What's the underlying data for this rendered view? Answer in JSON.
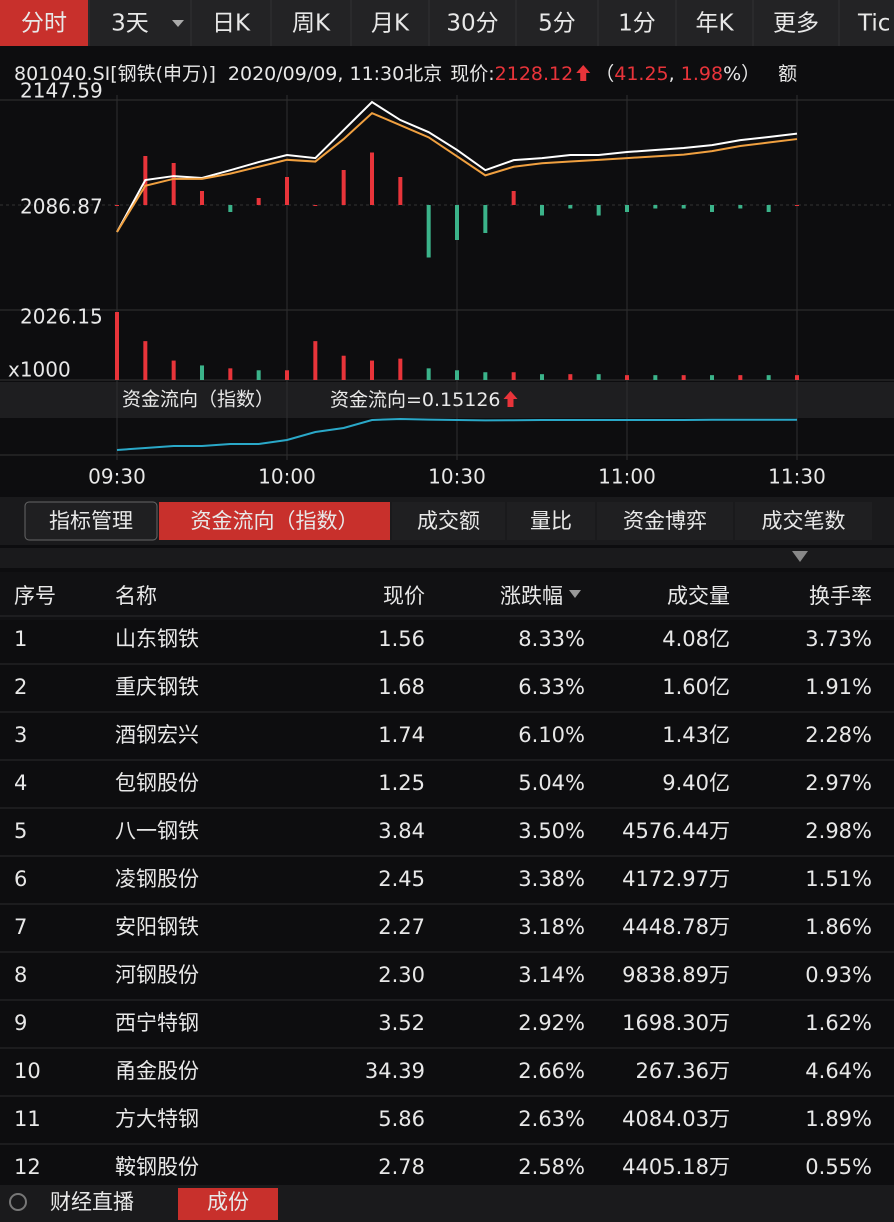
{
  "top_tabs": [
    "分时",
    "3天",
    "日K",
    "周K",
    "月K",
    "30分",
    "5分",
    "1分",
    "年K",
    "更多",
    "Tic"
  ],
  "info": {
    "code": "801040.SI[钢铁(申万)]",
    "time": "2020/09/09, 11:30北京",
    "price_label": "现价:",
    "price": "2128.12",
    "open": "（",
    "change": "41.25",
    "sep": ", ",
    "change_pct": "1.98",
    "close": "%）",
    "extra": "额"
  },
  "chart_data": [
    {
      "type": "line",
      "x": [
        "09:30",
        null,
        null,
        null,
        null,
        null,
        "10:00",
        null,
        null,
        null,
        null,
        null,
        "10:30",
        null,
        null,
        null,
        null,
        null,
        "11:00",
        null,
        null,
        null,
        null,
        null,
        "11:30"
      ],
      "ylim": [
        2026.15,
        2147.59
      ],
      "yticks": [
        2026.15,
        2086.87,
        2147.59
      ],
      "series": [
        {
          "color": "#ffffff",
          "values": [
            2071.3,
            2101.3,
            2103.6,
            2102.5,
            2107,
            2111.7,
            2115.8,
            2114,
            2130.2,
            2146.4,
            2136,
            2129,
            2118.7,
            2107,
            2112.8,
            2114,
            2115.8,
            2115.8,
            2117.5,
            2118.7,
            2119.8,
            2121.5,
            2124.4,
            2126.2,
            2128.12
          ]
        },
        {
          "color": "#f0a040",
          "values": [
            2071.3,
            2098,
            2102,
            2102,
            2105,
            2109,
            2113,
            2112,
            2125,
            2140,
            2133,
            2126,
            2115,
            2104,
            2109,
            2111,
            2112,
            2113,
            2114,
            2115,
            2116,
            2118,
            2121,
            2123,
            2125
          ]
        }
      ]
    },
    {
      "type": "bar",
      "ylim": [
        -30,
        30
      ],
      "up_color": "#e8343a",
      "down_color": "#3bb38a",
      "values": [
        0,
        14,
        12,
        4,
        -2,
        2,
        8,
        0,
        10,
        15,
        8,
        -15,
        -10,
        -8,
        4,
        -3,
        -1,
        -3,
        -2,
        -1,
        -1,
        -2,
        -1,
        -2,
        0
      ]
    },
    {
      "type": "bar",
      "y_label": "x1000",
      "ylim": [
        0,
        70
      ],
      "values": [
        70,
        40,
        20,
        15,
        12,
        10,
        10,
        40,
        25,
        20,
        22,
        12,
        10,
        8,
        8,
        6,
        6,
        6,
        5,
        5,
        5,
        5,
        5,
        5,
        5
      ],
      "colors": [
        "#e8343a",
        "#e8343a",
        "#e8343a",
        "#3bb38a",
        "#e8343a",
        "#3bb38a",
        "#e8343a",
        "#e8343a",
        "#e8343a",
        "#e8343a",
        "#e8343a",
        "#3bb38a",
        "#3bb38a",
        "#3bb38a",
        "#e8343a",
        "#3bb38a",
        "#e8343a",
        "#3bb38a",
        "#e8343a",
        "#3bb38a",
        "#e8343a",
        "#3bb38a",
        "#e8343a",
        "#3bb38a",
        "#e8343a"
      ]
    },
    {
      "type": "line",
      "title": "资金流向（指数）",
      "readout_label": "资金流向=",
      "readout": 0.15126,
      "ylim": [
        0,
        0.16
      ],
      "series": [
        {
          "color": "#2aa8c8",
          "values": [
            0,
            0.01,
            0.02,
            0.02,
            0.03,
            0.03,
            0.05,
            0.09,
            0.11,
            0.15,
            0.155,
            0.152,
            0.15,
            0.148,
            0.149,
            0.15,
            0.15,
            0.15,
            0.15,
            0.15,
            0.15,
            0.151,
            0.151,
            0.151,
            0.15126
          ]
        }
      ]
    }
  ],
  "sub_tabs": [
    "指标管理",
    "资金流向（指数）",
    "成交额",
    "量比",
    "资金博弈",
    "成交笔数"
  ],
  "table": {
    "header": [
      "序号",
      "名称",
      "现价",
      "涨跌幅",
      "成交量",
      "换手率"
    ],
    "rows": [
      [
        "1",
        "山东钢铁",
        "1.56",
        "8.33%",
        "4.08亿",
        "3.73%"
      ],
      [
        "2",
        "重庆钢铁",
        "1.68",
        "6.33%",
        "1.60亿",
        "1.91%"
      ],
      [
        "3",
        "酒钢宏兴",
        "1.74",
        "6.10%",
        "1.43亿",
        "2.28%"
      ],
      [
        "4",
        "包钢股份",
        "1.25",
        "5.04%",
        "9.40亿",
        "2.97%"
      ],
      [
        "5",
        "八一钢铁",
        "3.84",
        "3.50%",
        "4576.44万",
        "2.98%"
      ],
      [
        "6",
        "凌钢股份",
        "2.45",
        "3.38%",
        "4172.97万",
        "1.51%"
      ],
      [
        "7",
        "安阳钢铁",
        "2.27",
        "3.18%",
        "4448.78万",
        "1.86%"
      ],
      [
        "8",
        "河钢股份",
        "2.30",
        "3.14%",
        "9838.89万",
        "0.93%"
      ],
      [
        "9",
        "西宁特钢",
        "3.52",
        "2.92%",
        "1698.30万",
        "1.62%"
      ],
      [
        "10",
        "甬金股份",
        "34.39",
        "2.66%",
        "267.36万",
        "4.64%"
      ],
      [
        "11",
        "方大特钢",
        "5.86",
        "2.63%",
        "4084.03万",
        "1.89%"
      ],
      [
        "12",
        "鞍钢股份",
        "2.78",
        "2.58%",
        "4405.18万",
        "0.55%"
      ]
    ]
  },
  "bottom": {
    "live": "财经直播",
    "button": "成份"
  }
}
